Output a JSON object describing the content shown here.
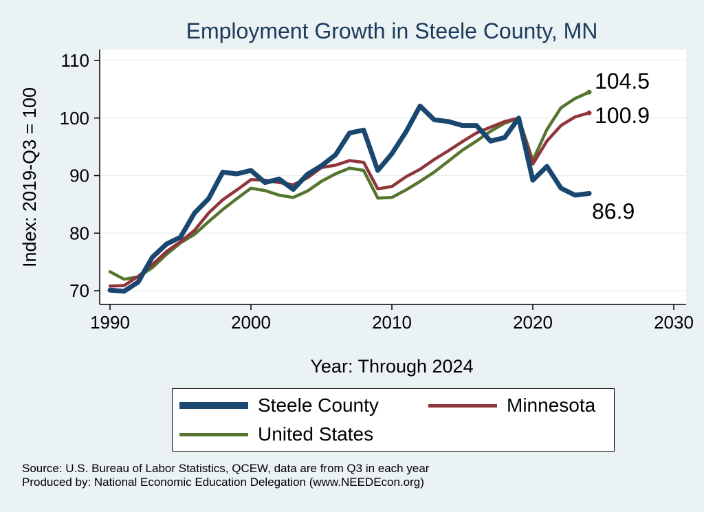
{
  "colors": {
    "background": "#eaf2f3",
    "plot_bg": "#ffffff",
    "grid": "#e4ecee",
    "title": "#1b3a5c",
    "steele": "#1a476f",
    "minnesota": "#90353b",
    "us": "#55752f"
  },
  "chart_data": {
    "type": "line",
    "title": "Employment Growth in Steele County, MN",
    "xlabel": "Year: Through 2024",
    "ylabel": "Index: 2019-Q3 = 100",
    "xlim": [
      1990,
      2030
    ],
    "ylim": [
      68,
      111
    ],
    "xticks": [
      1990,
      2000,
      2010,
      2020,
      2030
    ],
    "yticks": [
      70,
      80,
      90,
      100,
      110
    ],
    "x": [
      1990,
      1991,
      1992,
      1993,
      1994,
      1995,
      1996,
      1997,
      1998,
      1999,
      2000,
      2001,
      2002,
      2003,
      2004,
      2005,
      2006,
      2007,
      2008,
      2009,
      2010,
      2011,
      2012,
      2013,
      2014,
      2015,
      2016,
      2017,
      2018,
      2019,
      2020,
      2021,
      2022,
      2023,
      2024
    ],
    "series": [
      {
        "name": "Steele  County",
        "key": "steele",
        "values": [
          70.1,
          69.9,
          71.5,
          75.8,
          78.1,
          79.3,
          83.5,
          86.0,
          90.6,
          90.3,
          90.9,
          88.8,
          89.4,
          87.6,
          90.2,
          91.7,
          93.6,
          97.4,
          97.9,
          90.9,
          93.8,
          97.6,
          102.1,
          99.7,
          99.4,
          98.7,
          98.7,
          96.0,
          96.6,
          100.0,
          89.2,
          91.6,
          87.8,
          86.6,
          86.9
        ],
        "end_label": "86.9"
      },
      {
        "name": "Minnesota",
        "key": "minnesota",
        "values": [
          70.8,
          70.9,
          72.5,
          74.5,
          76.8,
          78.5,
          80.5,
          83.5,
          85.8,
          87.5,
          89.3,
          89.2,
          88.8,
          88.4,
          89.6,
          91.4,
          91.8,
          92.6,
          92.3,
          87.7,
          88.1,
          89.8,
          91.1,
          92.8,
          94.3,
          95.9,
          97.4,
          98.4,
          99.4,
          100.0,
          92.0,
          96.0,
          98.7,
          100.2,
          100.9
        ],
        "end_label": "100.9"
      },
      {
        "name": "United States",
        "key": "us",
        "values": [
          73.3,
          72.0,
          72.4,
          74.0,
          76.3,
          78.3,
          79.8,
          82.0,
          84.1,
          86.0,
          87.8,
          87.4,
          86.6,
          86.2,
          87.3,
          89.0,
          90.3,
          91.3,
          90.9,
          86.1,
          86.2,
          87.5,
          89.0,
          90.6,
          92.5,
          94.4,
          96.0,
          97.7,
          99.1,
          100.0,
          92.6,
          98.0,
          101.8,
          103.4,
          104.5
        ],
        "end_label": "104.5"
      }
    ],
    "legend": [
      "Steele  County",
      "Minnesota",
      "United States"
    ],
    "legend_position": "bottom"
  },
  "footer": {
    "source": "Source: U.S. Bureau of Labor Statistics, QCEW, data are from Q3 in each year",
    "produced_by": "Produced by: National Economic Education Delegation (www.NEEDEcon.org)"
  }
}
